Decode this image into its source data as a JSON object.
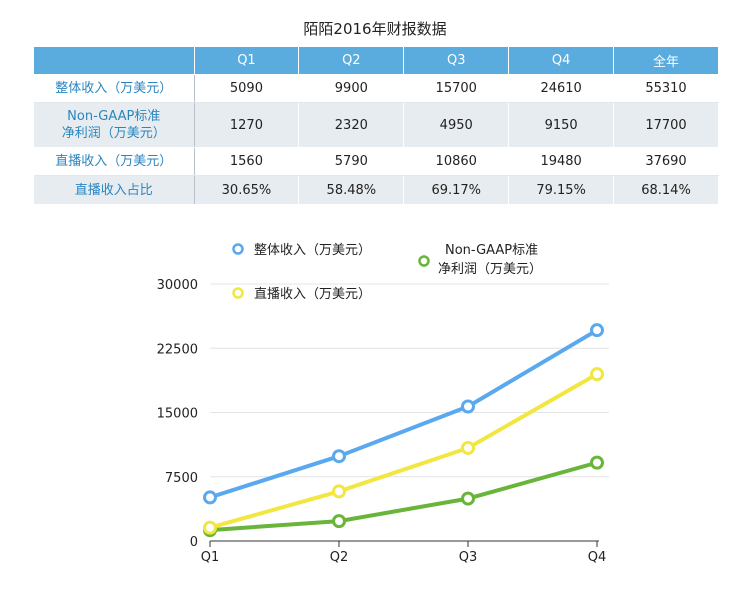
{
  "title": "陌陌2016年财报数据",
  "table": {
    "columns": [
      "",
      "Q1",
      "Q2",
      "Q3",
      "Q4",
      "全年"
    ],
    "rows": [
      {
        "label": "整体收入（万美元）",
        "cells": [
          "5090",
          "9900",
          "15700",
          "24610",
          "55310"
        ]
      },
      {
        "label": "Non-GAAP标准\n净利润（万美元）",
        "cells": [
          "1270",
          "2320",
          "4950",
          "9150",
          "17700"
        ]
      },
      {
        "label": "直播收入（万美元）",
        "cells": [
          "1560",
          "5790",
          "10860",
          "19480",
          "37690"
        ]
      },
      {
        "label": "直播收入占比",
        "cells": [
          "30.65%",
          "58.48%",
          "69.17%",
          "79.15%",
          "68.14%"
        ]
      }
    ]
  },
  "chart_data": {
    "type": "line",
    "categories": [
      "Q1",
      "Q2",
      "Q3",
      "Q4"
    ],
    "ylim": [
      0,
      30000
    ],
    "yticks": [
      "30000",
      "22500",
      "15000",
      "7500",
      "0"
    ],
    "grid": true,
    "legend_position": "top",
    "series": [
      {
        "name": "整体收入（万美元）",
        "values": [
          5090,
          9900,
          15700,
          24610
        ],
        "color": "#5aa9ef"
      },
      {
        "name": "直播收入（万美元）",
        "values": [
          1560,
          5790,
          10860,
          19480
        ],
        "color": "#f2e641"
      },
      {
        "name": "Non-GAAP标准\n净利润（万美元）",
        "values": [
          1270,
          2320,
          4950,
          9150
        ],
        "color": "#69b53a"
      }
    ]
  }
}
